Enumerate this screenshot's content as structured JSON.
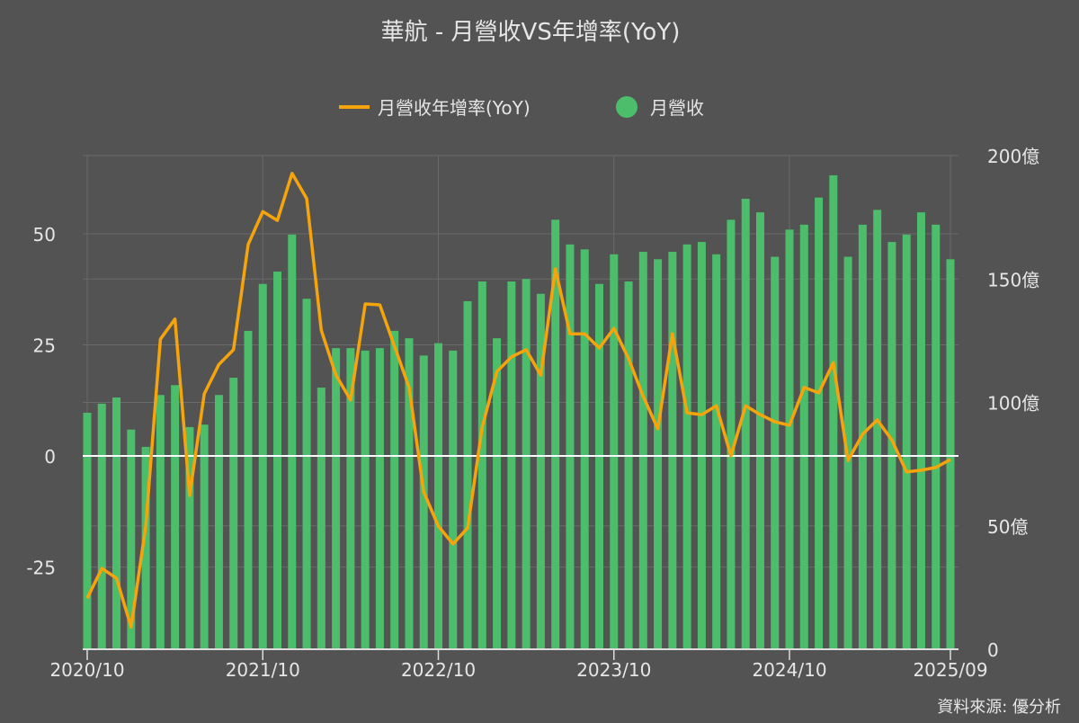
{
  "chart_data": {
    "type": "bar+line",
    "title": "華航 - 月營收VS年增率(YoY)",
    "source": "資料來源: 優分析",
    "colors": {
      "line": "#f5a40c",
      "bar": "#4cbd6a",
      "background": "#535353",
      "grid": "#6a6a6a",
      "zero": "#ffffff"
    },
    "legend": {
      "position": "top",
      "entries": [
        {
          "name": "月營收年增率(YoY)",
          "kind": "line"
        },
        {
          "name": "月營收",
          "kind": "bar"
        }
      ]
    },
    "x_ticks": [
      "2020/10",
      "2021/10",
      "2022/10",
      "2023/10",
      "2024/10",
      "2025/09"
    ],
    "x_tick_indices": [
      0,
      12,
      24,
      36,
      48,
      59
    ],
    "left_axis": {
      "ticks": [
        -25,
        0,
        25,
        50
      ],
      "tick_labels": [
        "-25",
        "0",
        "25",
        "50"
      ],
      "range": [
        -43.5,
        67.6
      ]
    },
    "right_axis": {
      "ticks": [
        0,
        50,
        100,
        150,
        200
      ],
      "tick_labels": [
        "0",
        "50億",
        "100億",
        "150億",
        "200億"
      ],
      "range": [
        0,
        200
      ]
    },
    "start_month": "2020/10",
    "end_month": "2025/09",
    "revenue_yi": [
      95.8,
      99.5,
      102,
      89,
      82,
      103,
      107,
      90,
      91,
      103,
      110,
      129,
      148,
      153,
      168,
      142,
      106,
      122,
      122,
      121,
      122,
      129,
      126,
      119,
      124,
      121,
      141,
      149,
      126,
      149,
      150,
      144,
      174,
      164,
      162,
      148,
      160,
      149,
      161,
      158,
      161,
      164,
      165,
      160,
      174,
      182.5,
      177,
      159,
      170,
      172,
      183,
      192,
      159,
      172,
      178,
      165,
      168,
      177,
      172,
      158
    ],
    "yoy_pct": [
      -32,
      -25.3,
      -27.5,
      -38.5,
      -15.8,
      26.3,
      30.8,
      -8.9,
      14,
      20.6,
      23.9,
      47.6,
      55,
      53,
      63.6,
      57.9,
      28.3,
      18.2,
      12.6,
      34.2,
      34,
      24.7,
      15.4,
      -8.1,
      -15.8,
      -19.8,
      -16.2,
      6.5,
      19,
      22.3,
      23.9,
      18.2,
      42.1,
      27.5,
      27.5,
      24.3,
      28.7,
      21.9,
      13.4,
      6.1,
      27.5,
      9.7,
      9.3,
      11.3,
      0,
      11.3,
      9.3,
      7.7,
      6.9,
      15.4,
      14.2,
      21,
      -1,
      4.9,
      8.1,
      3.6,
      -3.6,
      -3.2,
      -2.6,
      -0.8
    ]
  }
}
